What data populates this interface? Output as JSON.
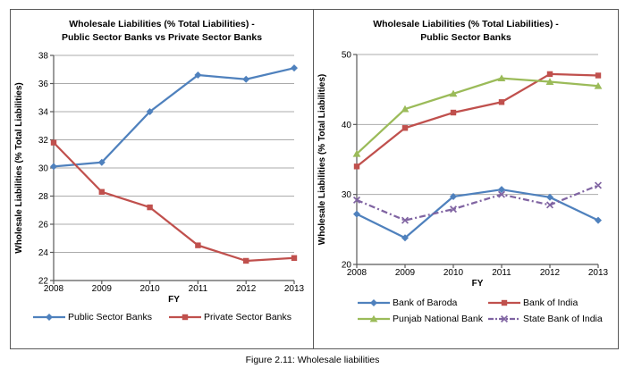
{
  "figure": {
    "caption": "Figure 2.11: Wholesale liabilities"
  },
  "colors": {
    "blue": "#4F81BD",
    "red": "#C0504D",
    "green": "#9BBB59",
    "purple": "#8064A2",
    "gridline": "#ABABAB",
    "axis": "#595959",
    "border": "#595959"
  },
  "chart_data": [
    {
      "type": "line",
      "title_lines": [
        "Wholesale Liabilities (% Total Liabilities) -",
        "Public Sector Banks vs Private Sector Banks"
      ],
      "xlabel": "FY",
      "ylabel": "Wholesale Liabilities (% Total Liabilities)",
      "categories": [
        "2008",
        "2009",
        "2010",
        "2011",
        "2012",
        "2013"
      ],
      "ylim": [
        22,
        38
      ],
      "ytick_step": 2,
      "grid": true,
      "legend_position": "bottom",
      "series": [
        {
          "name": "Public Sector Banks",
          "color": "#4F81BD",
          "marker": "diamond",
          "line_style": "solid",
          "values": [
            30.1,
            30.4,
            34.0,
            36.6,
            36.3,
            37.1
          ]
        },
        {
          "name": "Private Sector Banks",
          "color": "#C0504D",
          "marker": "square",
          "line_style": "solid",
          "values": [
            31.8,
            28.3,
            27.2,
            24.5,
            23.4,
            23.6
          ]
        }
      ]
    },
    {
      "type": "line",
      "title_lines": [
        "Wholesale Liabilities (% Total Liabilities) -",
        "Public Sector Banks"
      ],
      "xlabel": "FY",
      "ylabel": "Wholesale Liabilities (% Total Liabilities)",
      "categories": [
        "2008",
        "2009",
        "2010",
        "2011",
        "2012",
        "2013"
      ],
      "ylim": [
        20,
        50
      ],
      "ytick_step": 10,
      "grid": true,
      "legend_position": "bottom",
      "series": [
        {
          "name": "Bank of Baroda",
          "color": "#4F81BD",
          "marker": "diamond",
          "line_style": "solid",
          "values": [
            27.2,
            23.8,
            29.7,
            30.7,
            29.6,
            26.3
          ]
        },
        {
          "name": "Bank of India",
          "color": "#C0504D",
          "marker": "square",
          "line_style": "solid",
          "values": [
            34.0,
            39.5,
            41.7,
            43.2,
            47.2,
            47.0
          ]
        },
        {
          "name": "Punjab National Bank",
          "color": "#9BBB59",
          "marker": "triangle",
          "line_style": "solid",
          "values": [
            35.8,
            42.2,
            44.4,
            46.6,
            46.1,
            45.5
          ]
        },
        {
          "name": "State Bank of India",
          "color": "#8064A2",
          "marker": "x",
          "line_style": "dash_dot",
          "values": [
            29.2,
            26.3,
            27.9,
            30.0,
            28.5,
            31.3
          ]
        }
      ]
    }
  ]
}
